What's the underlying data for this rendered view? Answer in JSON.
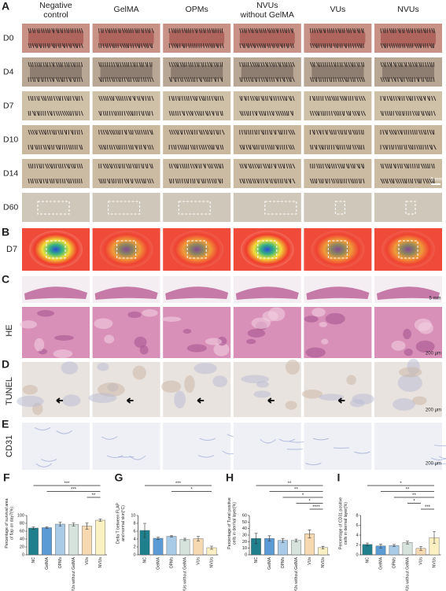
{
  "figure": {
    "panel_labels": {
      "A": "A",
      "B": "B",
      "C": "C",
      "D": "D",
      "E": "E"
    },
    "columns": [
      "Negative control",
      "GelMA",
      "OPMs",
      "NVUs without GelMA",
      "VUs",
      "NVUs"
    ],
    "rows_a": [
      "D0",
      "D4",
      "D7",
      "D10",
      "D14",
      "D60"
    ],
    "row_b": "D7",
    "row_c": "HE",
    "row_d": "TUNEL",
    "row_e": "CD31",
    "scale_bars": [
      "5 mm",
      "5 mm",
      "200 μm",
      "200 μm",
      "200 μm"
    ]
  },
  "chart_data": [
    {
      "type": "bar",
      "label": "F",
      "y_label": "Percentage of survival area of flap on day7(%)",
      "categories": [
        "NC",
        "GelMA",
        "OPMs",
        "NVUs without GelMA",
        "VUs",
        "NVUs"
      ],
      "values": [
        68,
        69,
        78,
        77,
        73,
        88
      ],
      "errors": [
        3,
        2,
        5,
        4,
        8,
        3
      ],
      "colors": [
        "#1f7f8c",
        "#5b9bd5",
        "#a9cbe8",
        "#d6e3dc",
        "#f6d9b0",
        "#fbf0c2"
      ],
      "ylim": [
        0,
        100
      ],
      "yticks": [
        0,
        20,
        40,
        60,
        80,
        100
      ],
      "significance": [
        {
          "between": [
            "NC",
            "NVUs"
          ],
          "label": "***"
        },
        {
          "between": [
            "GelMA",
            "NVUs"
          ],
          "label": "***"
        },
        {
          "between": [
            "VUs",
            "NVUs"
          ],
          "label": "**"
        }
      ]
    },
    {
      "type": "bar",
      "label": "G",
      "y_label": "Delta T between FLAP and normal skin(°C)",
      "categories": [
        "NC",
        "GelMA",
        "OPMs",
        "NVUs without GelMA",
        "VUs",
        "NVUs"
      ],
      "values": [
        6.2,
        4.2,
        4.7,
        3.9,
        4.1,
        1.8
      ],
      "errors": [
        1.8,
        0.3,
        0.2,
        0.3,
        0.6,
        0.4
      ],
      "colors": [
        "#1f7f8c",
        "#5b9bd5",
        "#a9cbe8",
        "#d6e3dc",
        "#f6d9b0",
        "#fbf0c2"
      ],
      "ylim": [
        0,
        10
      ],
      "yticks": [
        0,
        2,
        4,
        6,
        8,
        10
      ],
      "significance": [
        {
          "between": [
            "NC",
            "NVUs"
          ],
          "label": "***"
        },
        {
          "between": [
            "OPMs",
            "NVUs"
          ],
          "label": "*"
        }
      ]
    },
    {
      "type": "bar",
      "label": "H",
      "y_label": "Percentage of Tunel positive cells in dermal layer(%)",
      "categories": [
        "NC",
        "GelMA",
        "OPMs",
        "NVUs without GelMA",
        "VUs",
        "NVUs"
      ],
      "values": [
        25,
        25,
        22,
        22,
        32,
        11
      ],
      "errors": [
        8,
        4,
        3,
        2,
        6,
        2
      ],
      "colors": [
        "#1f7f8c",
        "#5b9bd5",
        "#a9cbe8",
        "#d6e3dc",
        "#f6d9b0",
        "#fbf0c2"
      ],
      "ylim": [
        0,
        60
      ],
      "yticks": [
        0,
        10,
        20,
        30,
        40,
        50,
        60
      ],
      "significance": [
        {
          "between": [
            "NC",
            "NVUs"
          ],
          "label": "**"
        },
        {
          "between": [
            "GelMA",
            "NVUs"
          ],
          "label": "**"
        },
        {
          "between": [
            "OPMs",
            "NVUs"
          ],
          "label": "*"
        },
        {
          "between": [
            "NVUs without GelMA",
            "NVUs"
          ],
          "label": "*"
        },
        {
          "between": [
            "VUs",
            "NVUs"
          ],
          "label": "****"
        }
      ]
    },
    {
      "type": "bar",
      "label": "I",
      "y_label": "Percentage of CD31 positive cells in dermal layer(%)",
      "categories": [
        "NC",
        "GelMA",
        "OPMs",
        "NVUs without GelMA",
        "VUs",
        "NVUs"
      ],
      "values": [
        2.1,
        1.8,
        1.9,
        2.5,
        1.3,
        3.5
      ],
      "errors": [
        0.3,
        0.4,
        0.2,
        0.3,
        0.4,
        1.2
      ],
      "colors": [
        "#1f7f8c",
        "#5b9bd5",
        "#a9cbe8",
        "#d6e3dc",
        "#f6d9b0",
        "#fbf0c2"
      ],
      "ylim": [
        0,
        8
      ],
      "yticks": [
        0,
        2,
        4,
        6,
        8
      ],
      "significance": [
        {
          "between": [
            "NC",
            "NVUs"
          ],
          "label": "*"
        },
        {
          "between": [
            "GelMA",
            "NVUs"
          ],
          "label": "**"
        },
        {
          "between": [
            "OPMs",
            "NVUs"
          ],
          "label": "**"
        },
        {
          "between": [
            "NVUs without GelMA",
            "VUs"
          ],
          "label": "*"
        },
        {
          "between": [
            "VUs",
            "NVUs"
          ],
          "label": "***"
        }
      ]
    }
  ]
}
